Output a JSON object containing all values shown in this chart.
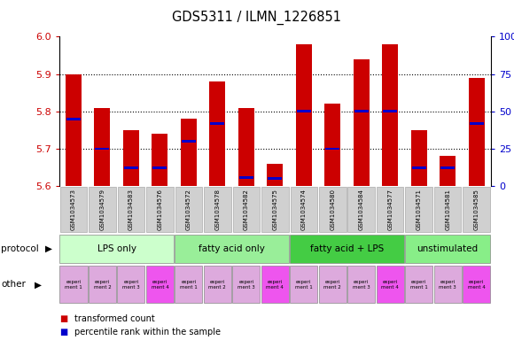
{
  "title": "GDS5311 / ILMN_1226851",
  "samples": [
    "GSM1034573",
    "GSM1034579",
    "GSM1034583",
    "GSM1034576",
    "GSM1034572",
    "GSM1034578",
    "GSM1034582",
    "GSM1034575",
    "GSM1034574",
    "GSM1034580",
    "GSM1034584",
    "GSM1034577",
    "GSM1034571",
    "GSM1034581",
    "GSM1034585"
  ],
  "red_values": [
    5.9,
    5.81,
    5.75,
    5.74,
    5.78,
    5.88,
    5.81,
    5.66,
    5.98,
    5.82,
    5.94,
    5.98,
    5.75,
    5.68,
    5.89
  ],
  "blue_values_pct": [
    45,
    25,
    12,
    12,
    30,
    42,
    6,
    5,
    50,
    25,
    50,
    50,
    12,
    12,
    42
  ],
  "ymin": 5.6,
  "ymax": 6.0,
  "yticks": [
    5.6,
    5.7,
    5.8,
    5.9,
    6.0
  ],
  "right_yticks": [
    0,
    25,
    50,
    75,
    100
  ],
  "protocols": [
    {
      "label": "LPS only",
      "count": 4,
      "color": "#ccffcc"
    },
    {
      "label": "fatty acid only",
      "count": 4,
      "color": "#99ee99"
    },
    {
      "label": "fatty acid + LPS",
      "count": 4,
      "color": "#44cc44"
    },
    {
      "label": "unstimulated",
      "count": 3,
      "color": "#88ee88"
    }
  ],
  "other_labels": [
    "experi\nment 1",
    "experi\nment 2",
    "experi\nment 3",
    "experi\nment 4",
    "experi\nment 1",
    "experi\nment 2",
    "experi\nment 3",
    "experi\nment 4",
    "experi\nment 1",
    "experi\nment 2",
    "experi\nment 3",
    "experi\nment 4",
    "experi\nment 1",
    "experi\nment 3",
    "experi\nment 4"
  ],
  "other_colors": [
    "#ddaadd",
    "#ddaadd",
    "#ddaadd",
    "#ee55ee",
    "#ddaadd",
    "#ddaadd",
    "#ddaadd",
    "#ee55ee",
    "#ddaadd",
    "#ddaadd",
    "#ddaadd",
    "#ee55ee",
    "#ddaadd",
    "#ddaadd",
    "#ee55ee"
  ],
  "bar_color_red": "#cc0000",
  "bar_color_blue": "#0000cc",
  "sample_cell_color": "#d0d0d0",
  "bar_width": 0.55
}
